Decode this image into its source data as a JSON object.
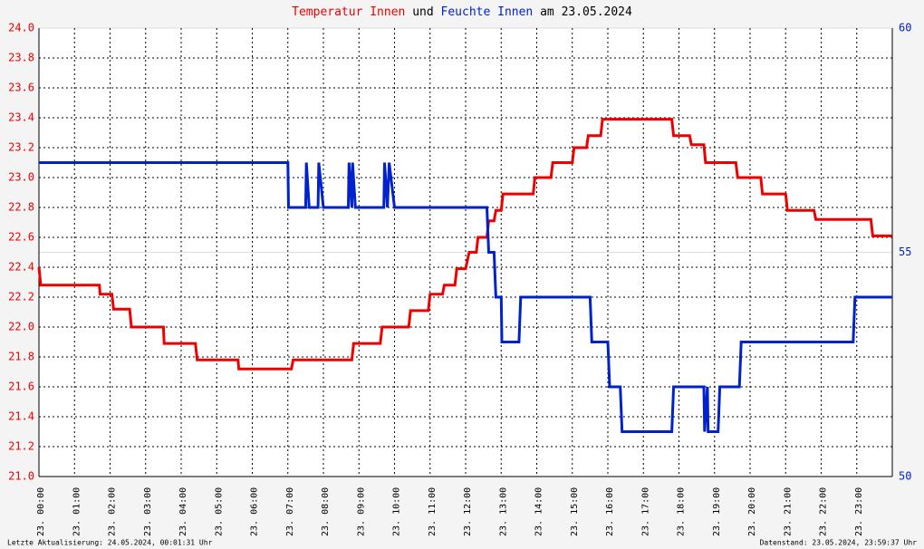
{
  "chart_data": {
    "type": "line",
    "title_parts": [
      {
        "text": "Temperatur Innen",
        "color": "#ee0000"
      },
      {
        "text": "und",
        "color": "#000000"
      },
      {
        "text": "Feuchte Innen",
        "color": "#0022cc"
      },
      {
        "text": "am 23.05.2024",
        "color": "#000000"
      }
    ],
    "footer_left": "Letzte Aktualisierung: 24.05.2024, 00:01:31 Uhr",
    "footer_right": "Datenstand: 23.05.2024, 23:59:37 Uhr",
    "grid": true,
    "xlim": [
      0,
      24
    ],
    "xticks": [
      {
        "value": 0,
        "label": "23. 00:00"
      },
      {
        "value": 1,
        "label": "23. 01:00"
      },
      {
        "value": 2,
        "label": "23. 02:00"
      },
      {
        "value": 3,
        "label": "23. 03:00"
      },
      {
        "value": 4,
        "label": "23. 04:00"
      },
      {
        "value": 5,
        "label": "23. 05:00"
      },
      {
        "value": 6,
        "label": "23. 06:00"
      },
      {
        "value": 7,
        "label": "23. 07:00"
      },
      {
        "value": 8,
        "label": "23. 08:00"
      },
      {
        "value": 9,
        "label": "23. 09:00"
      },
      {
        "value": 10,
        "label": "23. 10:00"
      },
      {
        "value": 11,
        "label": "23. 11:00"
      },
      {
        "value": 12,
        "label": "23. 12:00"
      },
      {
        "value": 13,
        "label": "23. 13:00"
      },
      {
        "value": 14,
        "label": "23. 14:00"
      },
      {
        "value": 15,
        "label": "23. 15:00"
      },
      {
        "value": 16,
        "label": "23. 16:00"
      },
      {
        "value": 17,
        "label": "23. 17:00"
      },
      {
        "value": 18,
        "label": "23. 18:00"
      },
      {
        "value": 19,
        "label": "23. 19:00"
      },
      {
        "value": 20,
        "label": "23. 20:00"
      },
      {
        "value": 21,
        "label": "23. 21:00"
      },
      {
        "value": 22,
        "label": "23. 22:00"
      },
      {
        "value": 23,
        "label": "23. 23:00"
      }
    ],
    "ylim": [
      21,
      24
    ],
    "yticks": [
      {
        "value": 21,
        "label": "21.0"
      },
      21.2,
      21.4,
      21.6,
      21.8,
      {
        "value": 22,
        "label": "22.0"
      },
      22.2,
      22.4,
      22.6,
      22.8,
      {
        "value": 23,
        "label": "23.0"
      },
      23.2,
      23.4,
      23.6,
      23.8,
      {
        "value": 24,
        "label": "24.0"
      }
    ],
    "y2lim": [
      50,
      60
    ],
    "y2ticks": [
      50,
      55,
      60
    ],
    "series": [
      {
        "name": "Temperatur Innen",
        "color": "#ee0000",
        "x": [
          0,
          0.05,
          1.7,
          1.72,
          2.05,
          2.1,
          2.55,
          2.6,
          3.5,
          3.52,
          4.4,
          4.45,
          5.6,
          5.62,
          7.1,
          7.15,
          8.8,
          8.85,
          9.6,
          9.65,
          10.4,
          10.45,
          10.95,
          11.0,
          11.35,
          11.4,
          11.7,
          11.75,
          12.0,
          12.1,
          12.3,
          12.35,
          12.6,
          12.65,
          12.8,
          12.85,
          13.0,
          13.05,
          13.9,
          13.95,
          14.4,
          14.45,
          15.0,
          15.05,
          15.4,
          15.45,
          15.8,
          15.85,
          17.8,
          17.85,
          18.3,
          18.35,
          18.7,
          18.75,
          19.6,
          19.65,
          20.3,
          20.35,
          21.0,
          21.05,
          21.8,
          21.85,
          23.4,
          23.45,
          24
        ],
        "values": [
          22.4,
          22.28,
          22.28,
          22.22,
          22.22,
          22.12,
          22.12,
          22.0,
          22.0,
          21.89,
          21.89,
          21.78,
          21.78,
          21.72,
          21.72,
          21.78,
          21.78,
          21.89,
          21.89,
          22.0,
          22.0,
          22.11,
          22.11,
          22.22,
          22.22,
          22.28,
          22.28,
          22.39,
          22.39,
          22.5,
          22.5,
          22.6,
          22.6,
          22.71,
          22.71,
          22.78,
          22.78,
          22.89,
          22.89,
          23.0,
          23.0,
          23.1,
          23.1,
          23.2,
          23.2,
          23.28,
          23.28,
          23.39,
          23.39,
          23.28,
          23.28,
          23.22,
          23.22,
          23.1,
          23.1,
          23.0,
          23.0,
          22.89,
          22.89,
          22.78,
          22.78,
          22.72,
          22.72,
          22.61,
          22.61
        ]
      },
      {
        "name": "Feuchte Innen",
        "color": "#0022cc",
        "axis": "y2",
        "x": [
          0,
          7.0,
          7.02,
          7.5,
          7.52,
          7.6,
          7.85,
          7.87,
          8.0,
          8.7,
          8.72,
          8.8,
          8.82,
          8.9,
          9.7,
          9.72,
          9.8,
          9.85,
          10.0,
          12.6,
          12.65,
          12.8,
          12.85,
          13.0,
          13.02,
          13.5,
          13.55,
          15.5,
          15.55,
          16.0,
          16.05,
          16.35,
          16.4,
          17.8,
          17.85,
          18.7,
          18.72,
          18.8,
          18.82,
          19.1,
          19.15,
          19.7,
          19.75,
          22.9,
          22.95,
          24
        ],
        "values": [
          57,
          57,
          56,
          56,
          57,
          56,
          56,
          57,
          56,
          56,
          57,
          56,
          57,
          56,
          56,
          57,
          56,
          57,
          56,
          56,
          55,
          55,
          54,
          54,
          53,
          53,
          54,
          54,
          53,
          53,
          52,
          52,
          51,
          51,
          52,
          52,
          51,
          52,
          51,
          51,
          52,
          52,
          53,
          53,
          54,
          54
        ]
      }
    ]
  }
}
